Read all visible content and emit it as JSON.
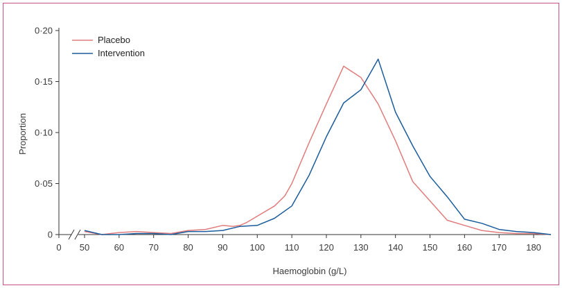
{
  "chart_data": {
    "type": "line",
    "title": "",
    "xlabel": "Haemoglobin (g/L)",
    "ylabel": "Proportion",
    "xlim": [
      45,
      185
    ],
    "ylim": [
      0,
      0.2
    ],
    "axis_break": true,
    "x_origin_label": "0",
    "x_ticks": [
      50,
      60,
      70,
      80,
      90,
      100,
      110,
      120,
      130,
      140,
      150,
      160,
      170,
      180
    ],
    "x_tick_labels": [
      "50",
      "60",
      "70",
      "80",
      "90",
      "100",
      "110",
      "120",
      "130",
      "140",
      "150",
      "160",
      "170",
      "180"
    ],
    "y_ticks": [
      0,
      0.05,
      0.1,
      0.15,
      0.2
    ],
    "y_tick_labels": [
      "0",
      "0·05",
      "0·10",
      "0·15",
      "0·20"
    ],
    "grid": false,
    "legend_position": "top-left",
    "series": [
      {
        "name": "Placebo",
        "color": "#e07c7c",
        "points": [
          [
            50,
            0.003
          ],
          [
            55,
            0.0
          ],
          [
            60,
            0.002
          ],
          [
            65,
            0.003
          ],
          [
            70,
            0.002
          ],
          [
            75,
            0.001
          ],
          [
            80,
            0.004
          ],
          [
            85,
            0.005
          ],
          [
            90,
            0.009
          ],
          [
            93,
            0.008
          ],
          [
            95,
            0.009
          ],
          [
            97,
            0.012
          ],
          [
            100,
            0.018
          ],
          [
            105,
            0.028
          ],
          [
            108,
            0.038
          ],
          [
            110,
            0.05
          ],
          [
            115,
            0.09
          ],
          [
            120,
            0.128
          ],
          [
            125,
            0.165
          ],
          [
            130,
            0.154
          ],
          [
            135,
            0.128
          ],
          [
            140,
            0.092
          ],
          [
            145,
            0.052
          ],
          [
            150,
            0.033
          ],
          [
            155,
            0.014
          ],
          [
            160,
            0.009
          ],
          [
            165,
            0.004
          ],
          [
            170,
            0.002
          ],
          [
            175,
            0.001
          ],
          [
            180,
            0.001
          ],
          [
            185,
            0.0
          ]
        ]
      },
      {
        "name": "Intervention",
        "color": "#1a5b9c",
        "points": [
          [
            50,
            0.004
          ],
          [
            55,
            0.0
          ],
          [
            60,
            0.0
          ],
          [
            65,
            0.001
          ],
          [
            70,
            0.001
          ],
          [
            75,
            0.0
          ],
          [
            80,
            0.003
          ],
          [
            85,
            0.003
          ],
          [
            90,
            0.004
          ],
          [
            95,
            0.008
          ],
          [
            100,
            0.009
          ],
          [
            105,
            0.016
          ],
          [
            110,
            0.028
          ],
          [
            115,
            0.058
          ],
          [
            120,
            0.096
          ],
          [
            125,
            0.129
          ],
          [
            130,
            0.142
          ],
          [
            135,
            0.172
          ],
          [
            140,
            0.12
          ],
          [
            145,
            0.087
          ],
          [
            150,
            0.057
          ],
          [
            155,
            0.037
          ],
          [
            160,
            0.015
          ],
          [
            165,
            0.011
          ],
          [
            170,
            0.005
          ],
          [
            175,
            0.003
          ],
          [
            180,
            0.002
          ],
          [
            185,
            0.0
          ]
        ]
      }
    ]
  }
}
